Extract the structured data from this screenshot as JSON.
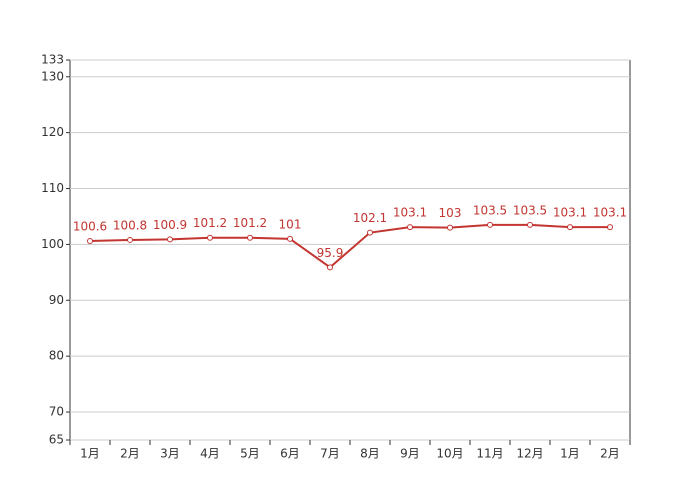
{
  "chart_data": {
    "type": "line",
    "categories": [
      "1月",
      "2月",
      "3月",
      "4月",
      "5月",
      "6月",
      "7月",
      "8月",
      "9月",
      "10月",
      "11月",
      "12月",
      "1月",
      "2月"
    ],
    "values": [
      100.6,
      100.8,
      100.9,
      101.2,
      101.2,
      101,
      95.9,
      102.1,
      103.1,
      103,
      103.5,
      103.5,
      103.1,
      103.1
    ],
    "color": "#c23531",
    "ylim": [
      65,
      133
    ],
    "yticks": [
      65,
      70,
      80,
      90,
      100,
      110,
      120,
      130,
      133
    ],
    "grid": true
  }
}
